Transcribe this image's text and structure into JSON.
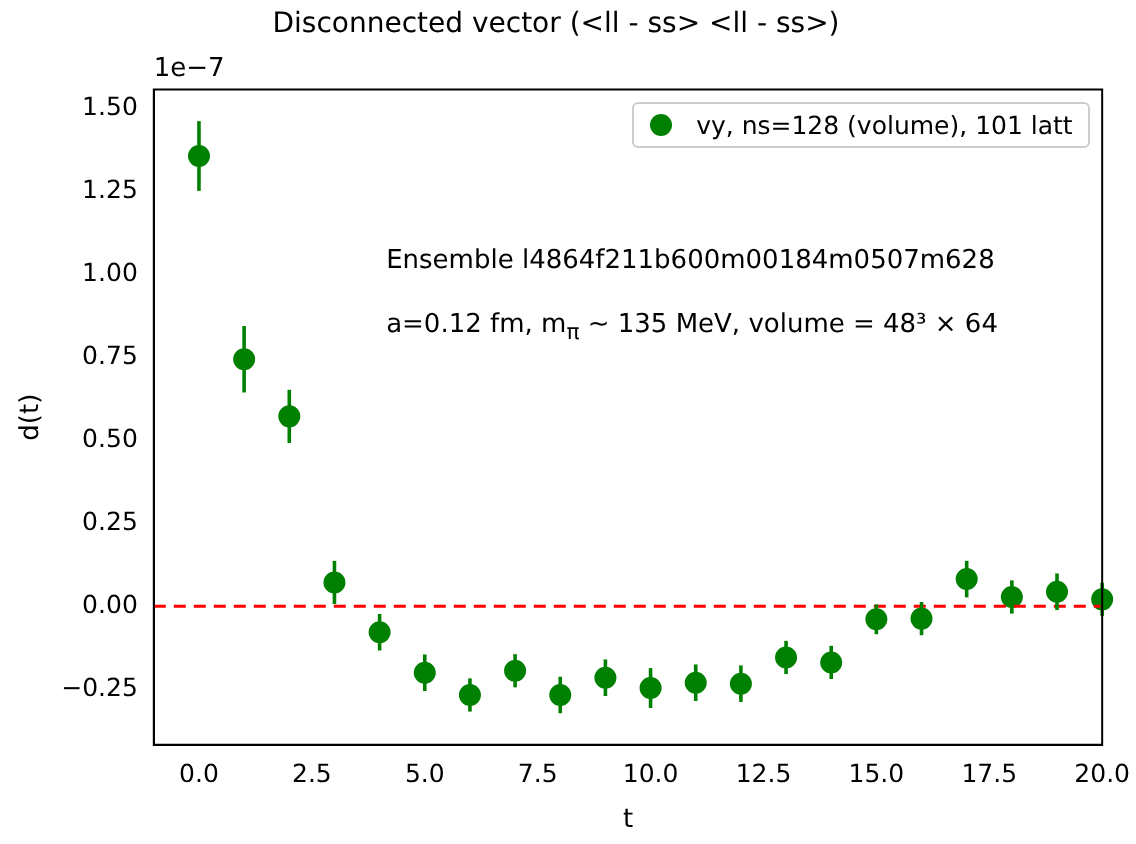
{
  "chart_data": {
    "type": "scatter",
    "title": "Disconnected vector (<ll - ss> <ll - ss>)",
    "xlabel": "t",
    "ylabel": "d(t)",
    "annotations": [
      "1e−7",
      "Ensemble l4864f211b600m00184m0507m628",
      "a=0.12 fm, m$_{π}$ ∼ 135 MeV, volume = 48³ × 64"
    ],
    "x": [
      0,
      1,
      2,
      3,
      4,
      5,
      6,
      7,
      8,
      9,
      10,
      11,
      12,
      13,
      14,
      15,
      16,
      17,
      18,
      19,
      20
    ],
    "series": [
      {
        "name": "vy, ns=128 (volume),  101 latt",
        "color": "#008000",
        "values": [
          1.356,
          0.744,
          0.572,
          0.072,
          -0.078,
          -0.2,
          -0.267,
          -0.194,
          -0.267,
          -0.215,
          -0.246,
          -0.23,
          -0.233,
          -0.154,
          -0.169,
          -0.039,
          -0.037,
          0.082,
          0.028,
          0.044,
          0.021
        ],
        "errors": [
          0.105,
          0.1,
          0.08,
          0.065,
          0.055,
          0.055,
          0.05,
          0.05,
          0.055,
          0.055,
          0.06,
          0.055,
          0.055,
          0.05,
          0.05,
          0.045,
          0.05,
          0.055,
          0.05,
          0.055,
          0.05
        ]
      }
    ],
    "xlim": [
      -1,
      20
    ],
    "xticks": [
      {
        "value": 0,
        "label": "0.0"
      },
      {
        "value": 2.5,
        "label": "2.5"
      },
      {
        "value": 5,
        "label": "5.0"
      },
      {
        "value": 7.5,
        "label": "7.5"
      },
      {
        "value": 10,
        "label": "10.0"
      },
      {
        "value": 12.5,
        "label": "12.5"
      },
      {
        "value": 15,
        "label": "15.0"
      },
      {
        "value": 17.5,
        "label": "17.5"
      },
      {
        "value": 20,
        "label": "20.0"
      }
    ],
    "ylim": [
      -0.417,
      1.556
    ],
    "yticks": [
      {
        "value": -0.25,
        "label": "−0.25"
      },
      {
        "value": 0,
        "label": "0.00"
      },
      {
        "value": 0.25,
        "label": "0.25"
      },
      {
        "value": 0.5,
        "label": "0.50"
      },
      {
        "value": 0.75,
        "label": "0.75"
      },
      {
        "value": 1,
        "label": "1.00"
      },
      {
        "value": 1.25,
        "label": "1.25"
      },
      {
        "value": 1.5,
        "label": "1.50"
      }
    ],
    "ref_lines": [
      {
        "axis": "y",
        "value": 0,
        "color": "#ff0000",
        "line_style": "dashed"
      }
    ],
    "grid": false,
    "legend": "top right",
    "marker": "circle"
  }
}
